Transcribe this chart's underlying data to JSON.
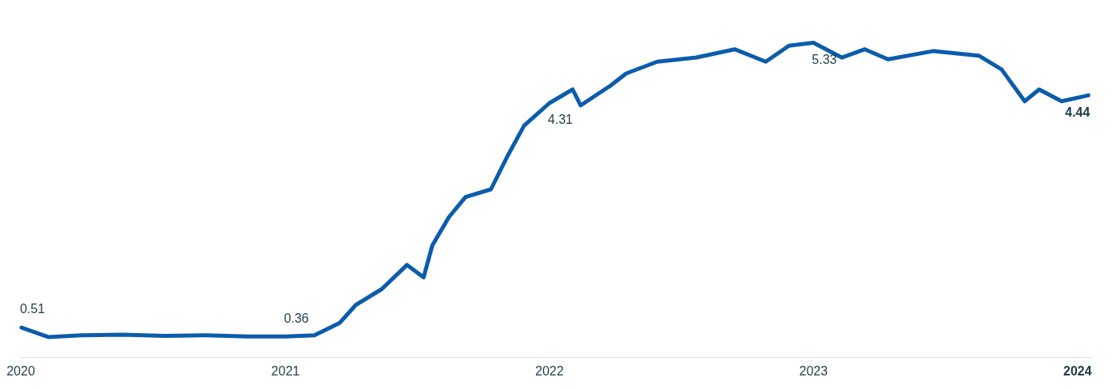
{
  "chart_data": {
    "type": "line",
    "tick_labels": "x",
    "grid": false,
    "legend": false,
    "marker": "none",
    "line_style": "solid",
    "xlim": [
      "2020-01-01",
      "2024-01-20"
    ],
    "xticks": [
      "2020",
      "2021",
      "2022",
      "2023",
      "2024"
    ],
    "x": [
      "2020-01-02",
      "2020-02-08",
      "2020-03-25",
      "2020-05-21",
      "2020-07-18",
      "2020-09-13",
      "2020-11-10",
      "2021-01-01",
      "2021-02-10",
      "2021-03-17",
      "2021-04-08",
      "2021-05-14",
      "2021-06-18",
      "2021-07-11",
      "2021-07-23",
      "2021-08-15",
      "2021-09-07",
      "2021-10-12",
      "2021-11-03",
      "2021-11-27",
      "2022-01-01",
      "2022-02-02",
      "2022-02-13",
      "2022-03-27",
      "2022-04-17",
      "2022-05-30",
      "2022-07-23",
      "2022-09-14",
      "2022-10-27",
      "2022-11-28",
      "2023-01-01",
      "2023-02-09",
      "2023-03-13",
      "2023-04-14",
      "2023-06-16",
      "2023-08-18",
      "2023-09-18",
      "2023-10-20",
      "2023-11-09",
      "2023-12-10",
      "2024-01-16"
    ],
    "series": [
      {
        "color": "#0b5cab",
        "values": [
          0.51,
          0.35,
          0.38,
          0.39,
          0.37,
          0.38,
          0.36,
          0.36,
          0.38,
          0.59,
          0.89,
          1.16,
          1.57,
          1.36,
          1.9,
          2.38,
          2.72,
          2.85,
          3.39,
          3.93,
          4.31,
          4.54,
          4.27,
          4.61,
          4.81,
          5.01,
          5.08,
          5.22,
          5.01,
          5.28,
          5.33,
          5.08,
          5.22,
          5.05,
          5.19,
          5.11,
          4.88,
          4.34,
          4.54,
          4.34,
          4.44
        ],
        "value_labels": [
          "0.51",
          null,
          null,
          null,
          null,
          null,
          null,
          "0.36",
          null,
          null,
          null,
          null,
          null,
          null,
          null,
          null,
          null,
          null,
          null,
          null,
          "4.31",
          null,
          null,
          null,
          null,
          null,
          null,
          null,
          null,
          null,
          "5.33",
          null,
          null,
          null,
          null,
          null,
          null,
          null,
          null,
          null,
          "4.44"
        ]
      }
    ]
  }
}
